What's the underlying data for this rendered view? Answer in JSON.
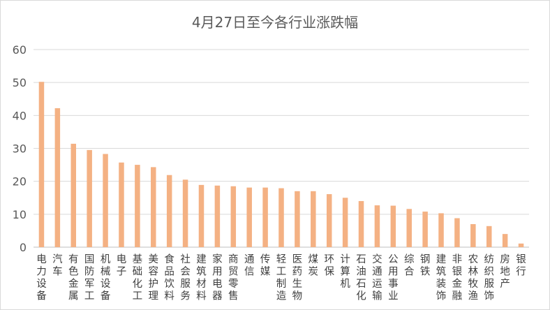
{
  "chart_data": {
    "type": "bar",
    "title": "4月27日至今各行业涨跌幅",
    "xlabel": "",
    "ylabel": "",
    "ylim": [
      0,
      60
    ],
    "yticks": [
      0,
      10,
      20,
      30,
      40,
      50,
      60
    ],
    "grid": true,
    "legend": "none",
    "bar_color": "#F4B183",
    "categories": [
      "电力设备",
      "汽车",
      "有色金属",
      "国防军工",
      "机械设备",
      "电子",
      "基础化工",
      "美容护理",
      "食品饮料",
      "社会服务",
      "建筑材料",
      "家用电器",
      "商贸零售",
      "通信",
      "传媒",
      "轻工制造",
      "医药生物",
      "煤炭",
      "环保",
      "计算机",
      "石油石化",
      "交通运输",
      "公用事业",
      "综合",
      "钢铁",
      "建筑装饰",
      "非银金融",
      "农林牧渔",
      "纺织服饰",
      "房地产",
      "银行"
    ],
    "values": [
      50.2,
      42.2,
      31.4,
      29.5,
      28.3,
      25.7,
      25.0,
      24.3,
      21.9,
      20.5,
      18.9,
      18.7,
      18.5,
      18.1,
      18.1,
      17.9,
      17.0,
      17.0,
      16.1,
      15.0,
      14.0,
      12.7,
      12.6,
      11.6,
      10.8,
      10.3,
      8.8,
      7.0,
      6.4,
      4.0,
      1.1
    ]
  }
}
